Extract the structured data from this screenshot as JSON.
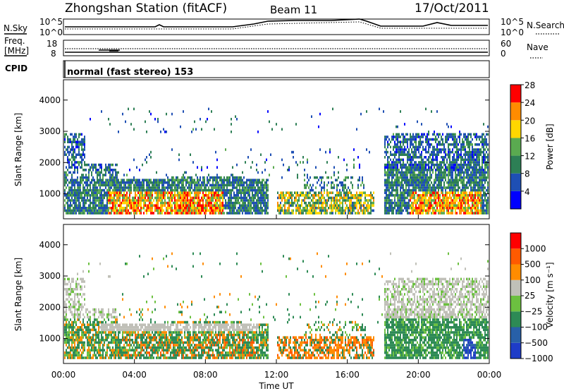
{
  "header": {
    "station": "Zhongshan Station (fitACF)",
    "beam": "Beam 11",
    "date": "17/Oct/2011"
  },
  "noise_panel": {
    "left_label": "N.Sky",
    "right_label": "N.Search",
    "tick_top": "10^5",
    "tick_bottom": "10^0"
  },
  "freq_panel": {
    "left_label_1": "Freq.",
    "left_label_2": "[MHz]",
    "left_ticks": [
      "18",
      "8"
    ],
    "right_label": "Nave",
    "right_ticks": [
      "60",
      "0"
    ]
  },
  "cpid_panel": {
    "label": "CPID",
    "text": "normal (fast stereo) 153"
  },
  "chart_data": [
    {
      "type": "heatmap",
      "title": "",
      "xlabel": "Time UT",
      "ylabel": "Slant Range [km]",
      "x_ticks": [
        "00:00",
        "04:00",
        "08:00",
        "12:00",
        "16:00",
        "20:00",
        "00:00"
      ],
      "x_range_hours": [
        0,
        24
      ],
      "y_ticks": [
        "1000",
        "2000",
        "3000",
        "4000"
      ],
      "ylim": [
        200,
        4650
      ],
      "colorbar": {
        "label": "Power [dB]",
        "ticks": [
          "4",
          "8",
          "12",
          "16",
          "20",
          "24",
          "28"
        ],
        "range": [
          0,
          30
        ],
        "colors": [
          "#0000ff",
          "#1e4fb4",
          "#2d7f55",
          "#5aaa50",
          "#ffd700",
          "#ff8c00",
          "#ff0000"
        ]
      }
    },
    {
      "type": "heatmap",
      "title": "",
      "xlabel": "Time UT",
      "ylabel": "Slant Range [km]",
      "x_ticks": [
        "00:00",
        "04:00",
        "08:00",
        "12:00",
        "16:00",
        "20:00",
        "00:00"
      ],
      "x_range_hours": [
        0,
        24
      ],
      "y_ticks": [
        "1000",
        "2000",
        "3000",
        "4000"
      ],
      "ylim": [
        200,
        4650
      ],
      "colorbar": {
        "label": "Velocity [m s⁻¹]",
        "ticks": [
          "1000",
          "500",
          "100",
          "25",
          "−25",
          "−100",
          "−500",
          "−1000"
        ],
        "colors": [
          "#1e3cc8",
          "#2860a8",
          "#2d8a55",
          "#6cc040",
          "#c0c0b8",
          "#ff8c00",
          "#ff5a00",
          "#ff0000"
        ]
      }
    }
  ]
}
